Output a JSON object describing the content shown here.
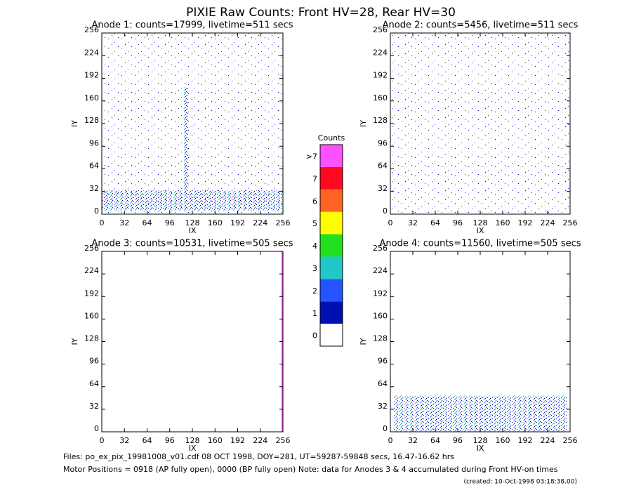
{
  "title": "PIXIE Raw Counts:  Front HV=28, Rear HV=30",
  "chart_data": [
    {
      "type": "heatmap",
      "title": "Anode 1: counts=17999, livetime=511 secs",
      "xlabel": "IX",
      "ylabel": "IY",
      "xlim": [
        0,
        256
      ],
      "ylim": [
        0,
        256
      ],
      "xticks": [
        0,
        32,
        64,
        96,
        128,
        160,
        192,
        224,
        256
      ],
      "yticks": [
        0,
        32,
        64,
        96,
        128,
        160,
        192,
        224,
        256
      ]
    },
    {
      "type": "heatmap",
      "title": "Anode 2: counts=5456, livetime=511 secs",
      "xlabel": "IX",
      "ylabel": "IY",
      "xlim": [
        0,
        256
      ],
      "ylim": [
        0,
        256
      ],
      "xticks": [
        0,
        32,
        64,
        96,
        128,
        160,
        192,
        224,
        256
      ],
      "yticks": [
        0,
        32,
        64,
        96,
        128,
        160,
        192,
        224,
        256
      ]
    },
    {
      "type": "heatmap",
      "title": "Anode 3: counts=10531, livetime=505 secs",
      "xlabel": "IX",
      "ylabel": "IY",
      "xlim": [
        0,
        256
      ],
      "ylim": [
        0,
        256
      ],
      "xticks": [
        0,
        32,
        64,
        96,
        128,
        160,
        192,
        224,
        256
      ],
      "yticks": [
        0,
        32,
        64,
        96,
        128,
        160,
        192,
        224,
        256
      ]
    },
    {
      "type": "heatmap",
      "title": "Anode 4: counts=11560, livetime=505 secs",
      "xlabel": "IX",
      "ylabel": "IY",
      "xlim": [
        0,
        256
      ],
      "ylim": [
        0,
        256
      ],
      "xticks": [
        0,
        32,
        64,
        96,
        128,
        160,
        192,
        224,
        256
      ],
      "yticks": [
        0,
        32,
        64,
        96,
        128,
        160,
        192,
        224,
        256
      ]
    }
  ],
  "colorbar": {
    "title": "Counts",
    "labels": [
      "0",
      "1",
      "2",
      "3",
      "4",
      "5",
      "6",
      "7",
      ">7"
    ],
    "colors": [
      "#ffffff",
      "#0010b0",
      "#2454ff",
      "#20c8c8",
      "#20e020",
      "#ffff00",
      "#ff6424",
      "#ff0820",
      "#ff50ff"
    ]
  },
  "footer": [
    "Files: po_ex_pix_19981008_v01.cdf   08 OCT 1998, DOY=281, UT=59287-59848 secs, 16.47-16.62 hrs",
    "Motor Positions = 0918 (AP fully open), 0000 (BP fully open)   Note: data for Anodes 3 & 4 accumulated during Front HV-on times",
    "(created: 10-Oct-1998 03:18:38.00)"
  ]
}
